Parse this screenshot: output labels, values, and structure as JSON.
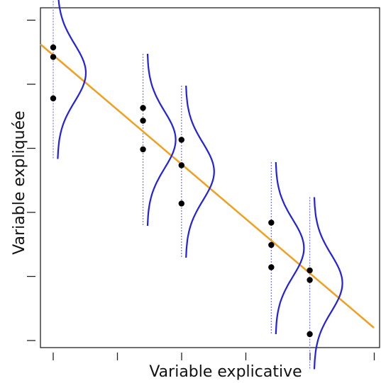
{
  "chart_data": {
    "type": "scatter",
    "title": "",
    "xlabel": "Variable explicative",
    "ylabel": "Variable expliquée",
    "xlim": [
      0,
      10
    ],
    "ylim": [
      0,
      10
    ],
    "x_ticks": [
      1,
      3,
      5,
      7,
      9,
      11
    ],
    "y_ticks": [
      1,
      3,
      5,
      7,
      9,
      11
    ],
    "grid": false,
    "colors": {
      "points": "#000000",
      "regression_line": "#f0a020",
      "density_curves": "#2222dd",
      "guide_lines": "#7777dd",
      "axes": "#222222"
    },
    "points": [
      {
        "x": 1.0,
        "y": 9.2
      },
      {
        "x": 1.0,
        "y": 8.9
      },
      {
        "x": 1.0,
        "y": 7.6
      },
      {
        "x": 3.8,
        "y": 7.3
      },
      {
        "x": 3.8,
        "y": 6.9
      },
      {
        "x": 3.8,
        "y": 6.0
      },
      {
        "x": 5.0,
        "y": 6.3
      },
      {
        "x": 5.0,
        "y": 5.5
      },
      {
        "x": 5.0,
        "y": 4.3
      },
      {
        "x": 7.8,
        "y": 3.7
      },
      {
        "x": 7.8,
        "y": 3.0
      },
      {
        "x": 7.8,
        "y": 2.3
      },
      {
        "x": 9.0,
        "y": 2.2
      },
      {
        "x": 9.0,
        "y": 1.9
      },
      {
        "x": 9.0,
        "y": 0.2
      }
    ],
    "regression_line": {
      "x": [
        0.6,
        11.0
      ],
      "y": [
        9.3,
        0.4
      ]
    },
    "density_groups": [
      {
        "x": 1.0,
        "mean": 8.4,
        "sd": 0.9
      },
      {
        "x": 3.8,
        "mean": 6.3,
        "sd": 0.9
      },
      {
        "x": 5.0,
        "mean": 5.3,
        "sd": 0.9
      },
      {
        "x": 7.8,
        "mean": 2.9,
        "sd": 0.9
      },
      {
        "x": 9.0,
        "mean": 1.8,
        "sd": 0.9
      }
    ]
  }
}
